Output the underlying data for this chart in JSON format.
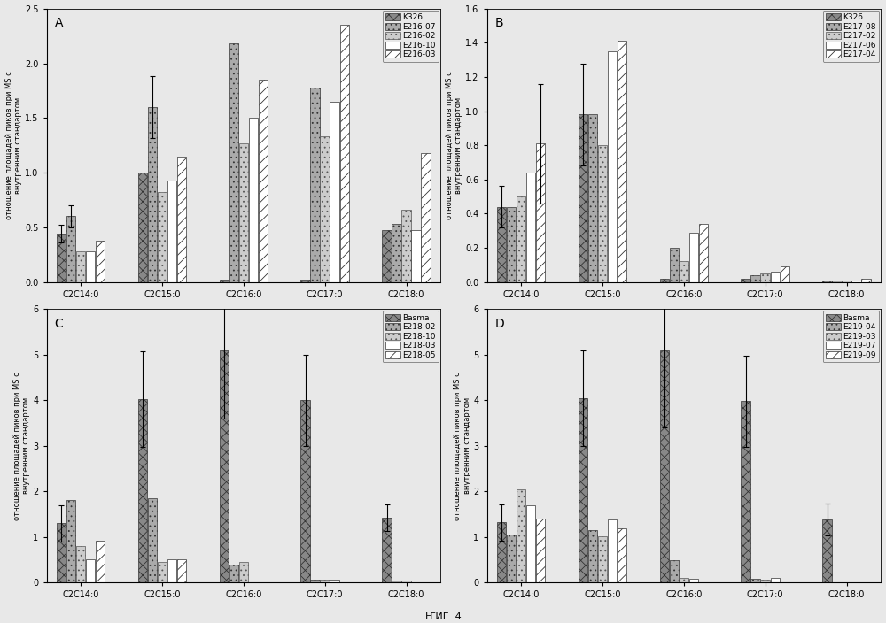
{
  "figure_title": "ҤИГ. 4",
  "ylabel": "отношение площадей пиков при MS с\nвнутренним стандартом",
  "categories": [
    "C2C14:0",
    "C2C15:0",
    "C2C16:0",
    "C2C17:0",
    "C2C18:0"
  ],
  "panel_A": {
    "label": "A",
    "ylim": [
      0,
      2.5
    ],
    "yticks": [
      0.0,
      0.5,
      1.0,
      1.5,
      2.0,
      2.5
    ],
    "legend_labels": [
      "K326",
      "E216-07",
      "E216-02",
      "E216-10",
      "E216-03"
    ],
    "data": [
      [
        0.44,
        1.0,
        0.02,
        0.02,
        0.47
      ],
      [
        0.6,
        1.6,
        2.18,
        1.78,
        0.53
      ],
      [
        0.28,
        0.82,
        1.27,
        1.33,
        0.66
      ],
      [
        0.28,
        0.93,
        1.5,
        1.65,
        0.47
      ],
      [
        0.38,
        1.15,
        1.85,
        2.35,
        1.18
      ]
    ],
    "errors": [
      [
        0.08,
        0.0,
        0.0,
        0.0,
        0.0
      ],
      [
        0.1,
        0.28,
        0.0,
        0.0,
        0.0
      ],
      [
        0.0,
        0.0,
        0.0,
        0.0,
        0.0
      ],
      [
        0.0,
        0.0,
        0.0,
        0.0,
        0.0
      ],
      [
        0.0,
        0.0,
        0.0,
        0.0,
        0.0
      ]
    ]
  },
  "panel_B": {
    "label": "B",
    "ylim": [
      0,
      1.6
    ],
    "yticks": [
      0.0,
      0.2,
      0.4,
      0.6,
      0.8,
      1.0,
      1.2,
      1.4,
      1.6
    ],
    "legend_labels": [
      "K326",
      "E217-08",
      "E217-02",
      "E217-06",
      "E217-04"
    ],
    "data": [
      [
        0.44,
        0.98,
        0.02,
        0.02,
        0.01
      ],
      [
        0.44,
        0.98,
        0.2,
        0.04,
        0.01
      ],
      [
        0.5,
        0.8,
        0.12,
        0.05,
        0.01
      ],
      [
        0.64,
        1.35,
        0.29,
        0.06,
        0.01
      ],
      [
        0.81,
        1.41,
        0.34,
        0.09,
        0.02
      ]
    ],
    "errors": [
      [
        0.12,
        0.3,
        0.0,
        0.0,
        0.0
      ],
      [
        0.0,
        0.0,
        0.0,
        0.0,
        0.0
      ],
      [
        0.0,
        0.0,
        0.0,
        0.0,
        0.0
      ],
      [
        0.0,
        0.0,
        0.0,
        0.0,
        0.0
      ],
      [
        0.35,
        0.0,
        0.0,
        0.0,
        0.0
      ]
    ]
  },
  "panel_C": {
    "label": "C",
    "ylim": [
      0,
      6.0
    ],
    "yticks": [
      0.0,
      1.0,
      2.0,
      3.0,
      4.0,
      5.0,
      6.0
    ],
    "legend_labels": [
      "Basma",
      "E218-02",
      "E218-10",
      "E218-03",
      "E218-05"
    ],
    "data": [
      [
        1.3,
        4.02,
        5.1,
        4.0,
        1.42
      ],
      [
        1.8,
        1.85,
        0.38,
        0.05,
        0.03
      ],
      [
        0.8,
        0.45,
        0.45,
        0.06,
        0.03
      ],
      [
        0.5,
        0.5,
        0.0,
        0.05,
        0.0
      ],
      [
        0.92,
        0.5,
        0.0,
        0.0,
        0.0
      ]
    ],
    "errors": [
      [
        0.4,
        1.05,
        1.5,
        1.0,
        0.3
      ],
      [
        0.0,
        0.0,
        0.0,
        0.0,
        0.0
      ],
      [
        0.0,
        0.0,
        0.0,
        0.0,
        0.0
      ],
      [
        0.0,
        0.0,
        0.0,
        0.0,
        0.0
      ],
      [
        0.0,
        0.0,
        0.0,
        0.0,
        0.0
      ]
    ]
  },
  "panel_D": {
    "label": "D",
    "ylim": [
      0,
      6.0
    ],
    "yticks": [
      0.0,
      1.0,
      2.0,
      3.0,
      4.0,
      5.0,
      6.0
    ],
    "legend_labels": [
      "Basma",
      "E219-04",
      "E219-03",
      "E219-07",
      "E219-09"
    ],
    "data": [
      [
        1.32,
        4.05,
        5.1,
        3.98,
        1.38
      ],
      [
        1.05,
        1.15,
        0.48,
        0.08,
        0.01
      ],
      [
        2.05,
        1.02,
        0.1,
        0.05,
        0.01
      ],
      [
        1.7,
        1.38,
        0.08,
        0.1,
        0.01
      ],
      [
        1.4,
        1.18,
        0.0,
        0.0,
        0.0
      ]
    ],
    "errors": [
      [
        0.4,
        1.05,
        1.7,
        1.0,
        0.35
      ],
      [
        0.0,
        0.0,
        0.0,
        0.0,
        0.0
      ],
      [
        0.0,
        0.0,
        0.0,
        0.0,
        0.0
      ],
      [
        0.0,
        0.0,
        0.0,
        0.0,
        0.0
      ],
      [
        0.0,
        0.0,
        0.0,
        0.0,
        0.0
      ]
    ]
  },
  "font_size": 7,
  "legend_font_size": 6.5,
  "tick_font_size": 7,
  "label_font_size": 6
}
